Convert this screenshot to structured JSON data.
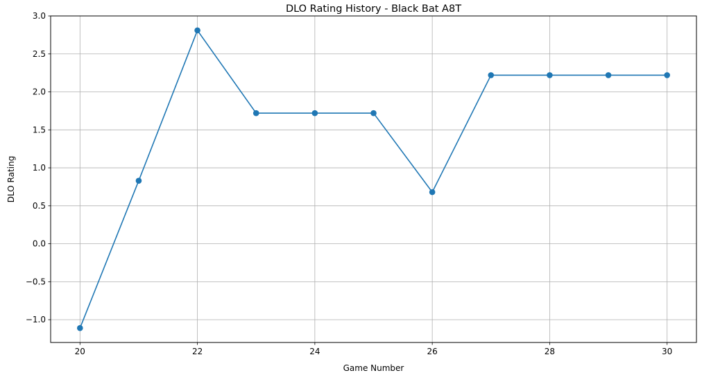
{
  "chart_data": {
    "type": "line",
    "title": "DLO Rating History - Black Bat A8T",
    "xlabel": "Game Number",
    "ylabel": "DLO Rating",
    "x": [
      20,
      21,
      22,
      23,
      24,
      25,
      26,
      27,
      28,
      29,
      30
    ],
    "series": [
      {
        "name": "DLO Rating",
        "values": [
          -1.11,
          0.83,
          2.81,
          1.72,
          1.72,
          1.72,
          0.68,
          2.22,
          2.22,
          2.22,
          2.22
        ],
        "color": "#1f77b4",
        "marker": "circle"
      }
    ],
    "xlim": [
      19.5,
      30.5
    ],
    "ylim": [
      -1.3,
      3.0
    ],
    "xticks": [
      20,
      22,
      24,
      26,
      28,
      30
    ],
    "xtick_labels": [
      "20",
      "22",
      "24",
      "26",
      "28",
      "30"
    ],
    "yticks": [
      -1.0,
      -0.5,
      0.0,
      0.5,
      1.0,
      1.5,
      2.0,
      2.5,
      3.0
    ],
    "ytick_labels": [
      "−1.0",
      "−0.5",
      "0.0",
      "0.5",
      "1.0",
      "1.5",
      "2.0",
      "2.5",
      "3.0"
    ],
    "grid": true,
    "grid_color": "#b0b0b0",
    "axes_color": "#000000",
    "legend": false
  }
}
